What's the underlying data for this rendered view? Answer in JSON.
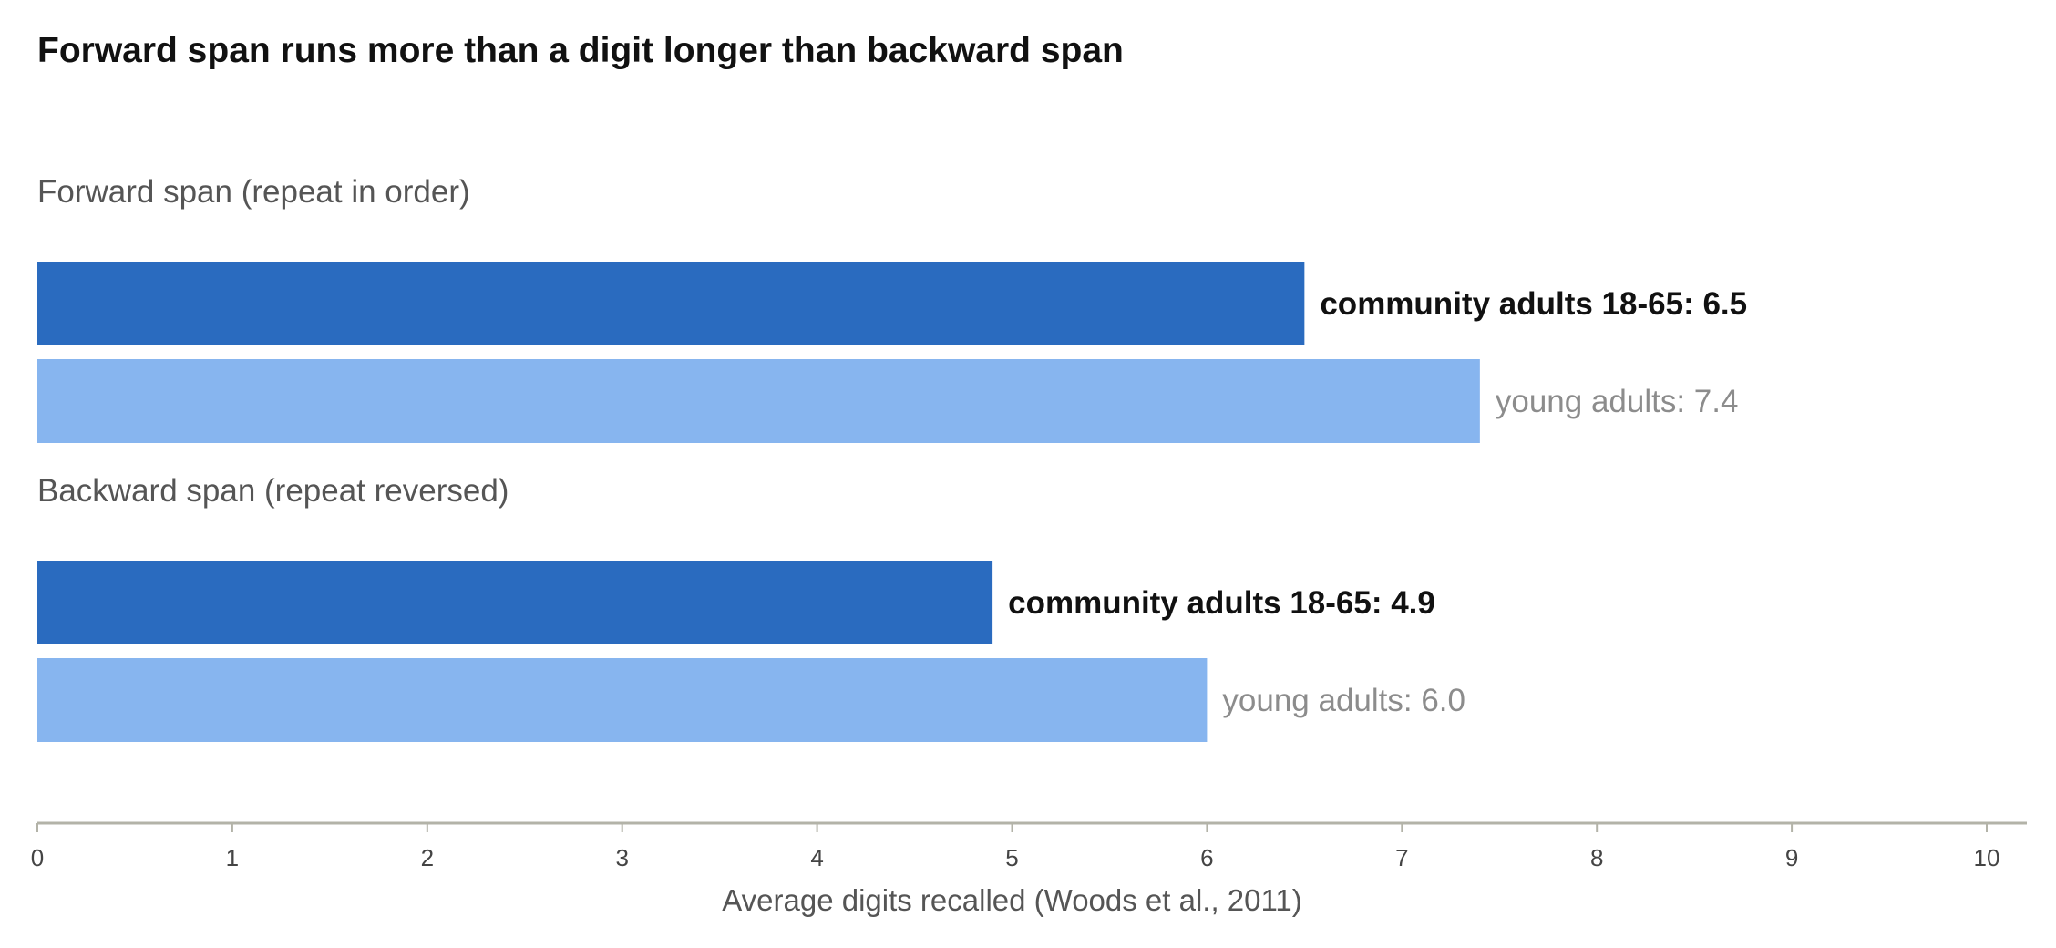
{
  "chart_data": {
    "type": "bar",
    "orientation": "horizontal",
    "title": "Forward span runs more than a digit longer than backward span",
    "xlabel": "Average digits recalled (Woods et al., 2011)",
    "xlim": [
      0,
      10
    ],
    "ticks": [
      "0",
      "1",
      "2",
      "3",
      "4",
      "5",
      "6",
      "7",
      "8",
      "9",
      "10"
    ],
    "groups": [
      {
        "label": "Forward span (repeat in order)",
        "bars": [
          {
            "series": "community adults 18-65",
            "value": 6.5,
            "label": "community adults 18-65:  6.5"
          },
          {
            "series": "young adults",
            "value": 7.4,
            "label": "young adults:  7.4"
          }
        ]
      },
      {
        "label": "Backward span (repeat reversed)",
        "bars": [
          {
            "series": "community adults 18-65",
            "value": 4.9,
            "label": "community adults 18-65:  4.9"
          },
          {
            "series": "young adults",
            "value": 6.0,
            "label": "young adults:  6.0"
          }
        ]
      }
    ],
    "colors": {
      "community adults 18-65": "#2a6bbf",
      "young adults": "#87b5ef"
    },
    "grid": false,
    "legend": "none"
  }
}
